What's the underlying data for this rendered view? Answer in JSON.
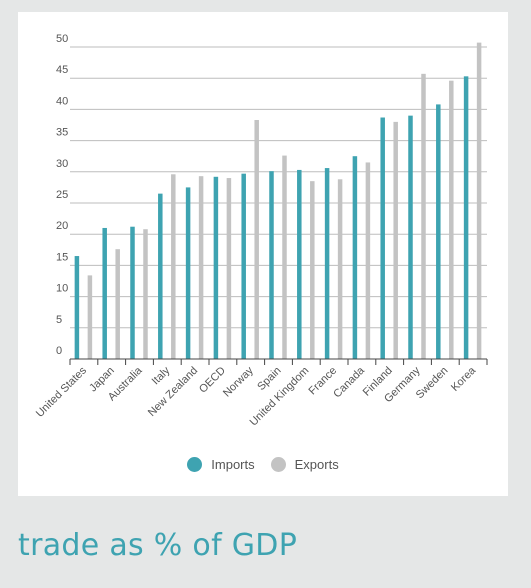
{
  "caption": "trade as % of GDP",
  "chart_data": {
    "type": "bar",
    "categories": [
      "United States",
      "Japan",
      "Australia",
      "Italy",
      "New Zealand",
      "OECD",
      "Norway",
      "Spain",
      "United Kingdom",
      "France",
      "Canada",
      "Finland",
      "Germany",
      "Sweden",
      "Korea"
    ],
    "series": [
      {
        "name": "Imports",
        "color": "#3ea3b1",
        "values": [
          16.5,
          21,
          21.2,
          26.5,
          27.5,
          29.2,
          29.7,
          30.1,
          30.3,
          30.6,
          32.5,
          38.7,
          39,
          40.8,
          45.3
        ]
      },
      {
        "name": "Exports",
        "color": "#c3c3c3",
        "values": [
          13.4,
          17.6,
          20.8,
          29.6,
          29.3,
          29,
          38.3,
          32.6,
          28.5,
          28.8,
          31.5,
          38,
          45.7,
          44.6,
          50.7
        ]
      }
    ],
    "yticks": [
      0,
      5,
      10,
      15,
      20,
      25,
      30,
      35,
      40,
      45,
      50
    ],
    "ylim": [
      0,
      50
    ],
    "grid": true,
    "legend": "bottom-center"
  },
  "legend": {
    "imports_label": "Imports",
    "exports_label": "Exports"
  }
}
